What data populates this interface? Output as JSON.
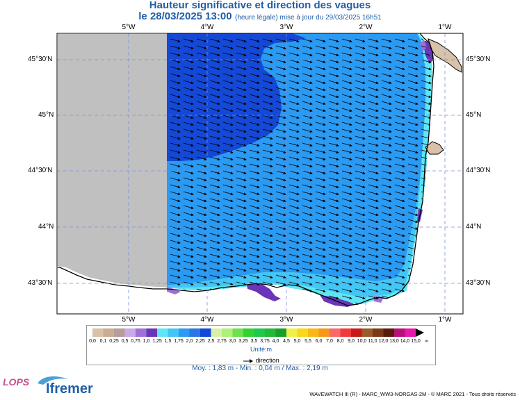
{
  "header": {
    "title": "Hauteur significative et direction des vagues",
    "date": "le 28/03/2025 13:00",
    "note": "(heure légale) mise à jour du 29/03/2025 16h51"
  },
  "axes": {
    "lon_labels": [
      "5°W",
      "4°W",
      "3°W",
      "2°W",
      "1°W"
    ],
    "lat_labels": [
      "45°30'N",
      "45°N",
      "44°30'N",
      "44°N",
      "43°30'N"
    ]
  },
  "legend": {
    "ticks": [
      "0,0",
      "0,1",
      "0,25",
      "0,5",
      "0,75",
      "1,0",
      "1,25",
      "1,5",
      "1,75",
      "2,0",
      "2,25",
      "2,5",
      "2,75",
      "3,0",
      "3,25",
      "3,5",
      "3,75",
      "4,0",
      "4,5",
      "5,0",
      "5,5",
      "6,0",
      "7,0",
      "8,0",
      "9,0",
      "10,0",
      "11,0",
      "12,0",
      "13,0",
      "14,0",
      "15,0",
      "∞"
    ],
    "colors": [
      "#d8c2a8",
      "#c9ad95",
      "#b79c9c",
      "#c9a9e6",
      "#a070d8",
      "#6a35b8",
      "#5fe6f5",
      "#43c6f5",
      "#2a9af2",
      "#2a75e6",
      "#1448d6",
      "#d8f0a8",
      "#aef07a",
      "#6ee04a",
      "#33d233",
      "#1ec84a",
      "#22b83a",
      "#1a9e2a",
      "#f0f04a",
      "#f8d818",
      "#f8b818",
      "#f89818",
      "#f86a6a",
      "#f03a3a",
      "#c81818",
      "#9a5a2a",
      "#7a3a1a",
      "#5a1a0a",
      "#b8107a",
      "#e818a8"
    ],
    "unit": "Unité:m",
    "direction_label": "direction"
  },
  "stats": {
    "text": "Moy. : 1,83 m   -   Min. : 0,04 m / Max. : 2,19 m"
  },
  "footer": {
    "credit": "WAVEWATCH III (R) - MARC_WW3-NORGAS-2M - © MARC 2021 - Tous droits réservés",
    "logo_lops": "LOPS",
    "logo_ifremer": "Ifremer"
  }
}
